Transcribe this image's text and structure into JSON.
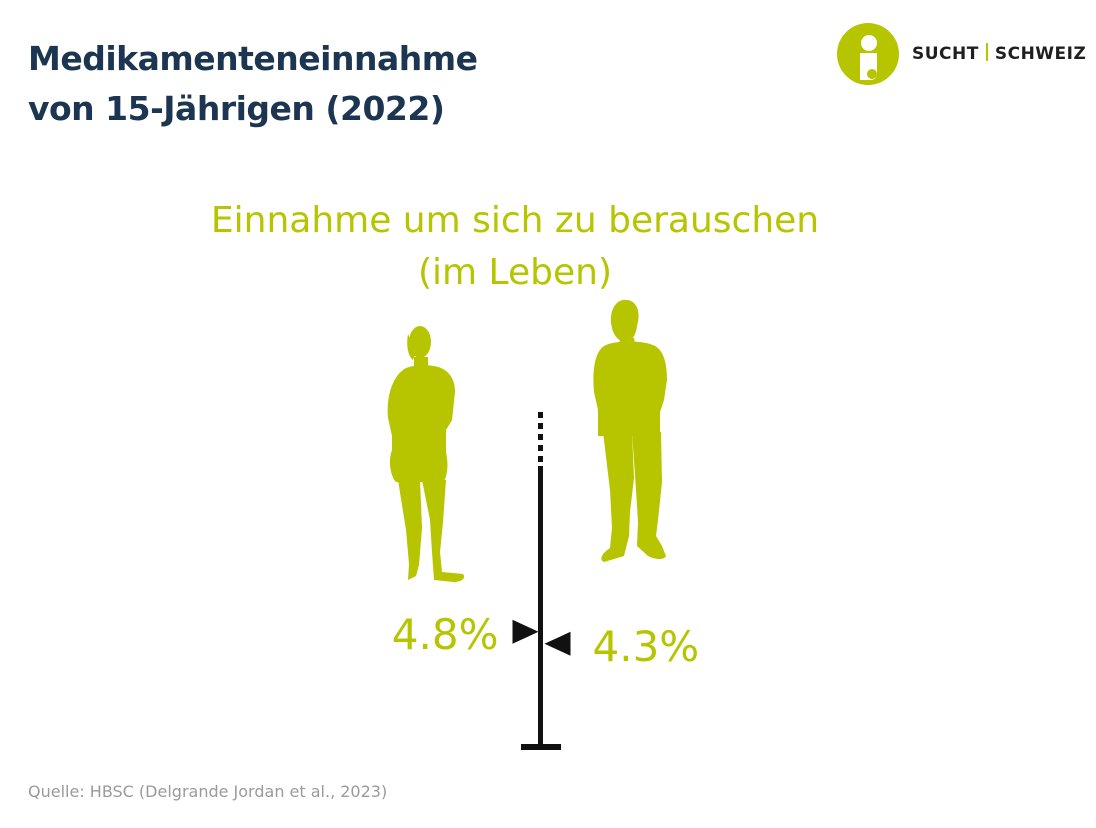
{
  "colors": {
    "title": "#1c3550",
    "accent": "#b6c500",
    "axis": "#111111",
    "source": "#9a9a9a"
  },
  "header": {
    "title_lines": [
      "Medikamenteneinnahme",
      "von 15-Jährigen (2022)"
    ]
  },
  "logo": {
    "icon": "sucht-schweiz-logo-icon",
    "text_left": "SUCHT",
    "text_right": "SCHWEIZ"
  },
  "chart_data": {
    "type": "pictogram-comparison",
    "title_lines": [
      "Einnahme um sich zu berauschen",
      "(im Leben)"
    ],
    "series": [
      {
        "name": "female",
        "icon": "female-silhouette-icon",
        "value": 4.8,
        "label": "4.8%"
      },
      {
        "name": "male",
        "icon": "male-silhouette-icon",
        "value": 4.3,
        "label": "4.3%"
      }
    ],
    "axis": {
      "min": 0,
      "scale_break_top": true
    }
  },
  "footer": {
    "source": "Quelle: HBSC (Delgrande Jordan et al., 2023)"
  }
}
